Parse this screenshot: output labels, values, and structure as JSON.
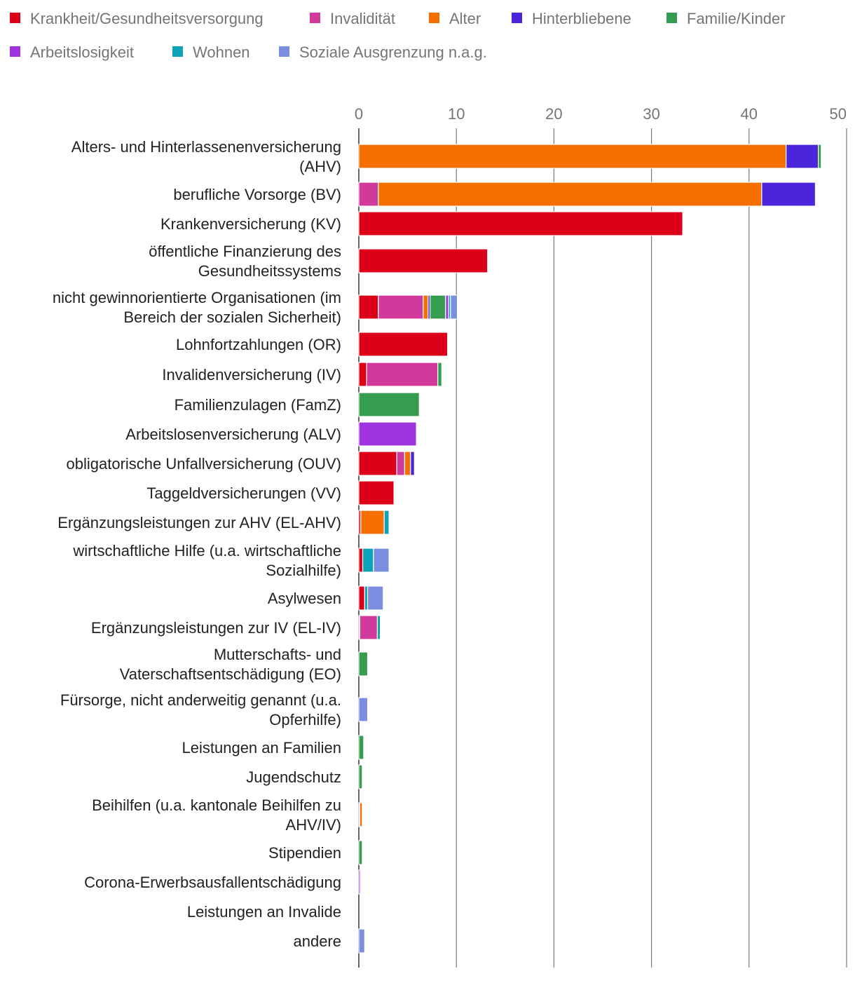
{
  "chart_data": {
    "type": "bar",
    "orientation": "horizontal",
    "stacked": true,
    "title": "",
    "xlabel": "",
    "ylabel": "",
    "xlim": [
      0,
      50
    ],
    "ticks": [
      0,
      10,
      20,
      30,
      40,
      50
    ],
    "grid": true,
    "legend_position": "top",
    "series": [
      {
        "name": "Krankheit/Gesundheitsversorgung",
        "color": "#dc0018"
      },
      {
        "name": "Invalidität",
        "color": "#d1399b"
      },
      {
        "name": "Alter",
        "color": "#f46e00"
      },
      {
        "name": "Hinterbliebene",
        "color": "#4a25d9"
      },
      {
        "name": "Familie/Kinder",
        "color": "#359c50"
      },
      {
        "name": "Arbeitslosigkeit",
        "color": "#a033e0"
      },
      {
        "name": "Wohnen",
        "color": "#0ca3b8"
      },
      {
        "name": "Soziale Ausgrenzung n.a.g.",
        "color": "#7b8ee0"
      }
    ],
    "categories": [
      {
        "label": [
          "Alters- und Hinterlassenenversicherung",
          "(AHV)"
        ],
        "values": [
          0,
          0,
          43.8,
          3.3,
          0.3,
          0,
          0,
          0
        ]
      },
      {
        "label": [
          "berufliche Vorsorge (BV)"
        ],
        "values": [
          0,
          2.0,
          39.3,
          5.5,
          0,
          0,
          0,
          0
        ]
      },
      {
        "label": [
          "Krankenversicherung (KV)"
        ],
        "values": [
          33.2,
          0,
          0,
          0,
          0,
          0,
          0,
          0
        ]
      },
      {
        "label": [
          "öffentliche Finanzierung des",
          "Gesundheitssystems"
        ],
        "values": [
          13.2,
          0,
          0,
          0,
          0,
          0,
          0,
          0
        ]
      },
      {
        "label": [
          "nicht gewinnorientierte Organisationen (im",
          "Bereich der sozialen Sicherheit)"
        ],
        "values": [
          2.0,
          4.6,
          0.5,
          0.2,
          1.6,
          0.3,
          0.2,
          0.7
        ]
      },
      {
        "label": [
          "Lohnfortzahlungen (OR)"
        ],
        "values": [
          9.1,
          0,
          0,
          0,
          0,
          0,
          0,
          0
        ]
      },
      {
        "label": [
          "Invalidenversicherung (IV)"
        ],
        "values": [
          0.8,
          7.3,
          0,
          0,
          0.4,
          0,
          0,
          0
        ]
      },
      {
        "label": [
          "Familienzulagen (FamZ)"
        ],
        "values": [
          0,
          0,
          0,
          0,
          6.2,
          0,
          0,
          0
        ]
      },
      {
        "label": [
          "Arbeitslosenversicherung (ALV)"
        ],
        "values": [
          0,
          0,
          0,
          0,
          0,
          5.9,
          0,
          0
        ]
      },
      {
        "label": [
          "obligatorische Unfallversicherung (OUV)"
        ],
        "values": [
          3.9,
          0.8,
          0.6,
          0.4,
          0,
          0,
          0,
          0
        ]
      },
      {
        "label": [
          "Taggeldversicherungen (VV)"
        ],
        "values": [
          3.6,
          0,
          0,
          0,
          0,
          0,
          0,
          0
        ]
      },
      {
        "label": [
          "Ergänzungsleistungen zur AHV (EL-AHV)"
        ],
        "values": [
          0.2,
          0,
          2.4,
          0,
          0,
          0,
          0.5,
          0
        ]
      },
      {
        "label": [
          "wirtschaftliche Hilfe (u.a. wirtschaftliche",
          "Sozialhilfe)"
        ],
        "values": [
          0.4,
          0,
          0,
          0,
          0,
          0,
          1.1,
          1.6
        ]
      },
      {
        "label": [
          "Asylwesen"
        ],
        "values": [
          0.6,
          0,
          0,
          0,
          0,
          0,
          0.3,
          1.6
        ]
      },
      {
        "label": [
          "Ergänzungsleistungen zur IV (EL-IV)"
        ],
        "values": [
          0.1,
          1.8,
          0,
          0,
          0,
          0,
          0.3,
          0
        ]
      },
      {
        "label": [
          "Mutterschafts- und",
          "Vaterschaftsentschädigung (EO)"
        ],
        "values": [
          0,
          0,
          0,
          0,
          0.9,
          0,
          0,
          0
        ]
      },
      {
        "label": [
          "Fürsorge, nicht anderweitig genannt (u.a.",
          "Opferhilfe)"
        ],
        "values": [
          0,
          0,
          0,
          0,
          0,
          0,
          0,
          0.9
        ]
      },
      {
        "label": [
          "Leistungen an Familien"
        ],
        "values": [
          0,
          0,
          0,
          0,
          0.5,
          0,
          0,
          0
        ]
      },
      {
        "label": [
          "Jugendschutz"
        ],
        "values": [
          0,
          0,
          0,
          0,
          0.35,
          0,
          0,
          0
        ]
      },
      {
        "label": [
          "Beihilfen (u.a. kantonale Beihilfen zu",
          "AHV/IV)"
        ],
        "values": [
          0,
          0.1,
          0.25,
          0,
          0,
          0,
          0,
          0
        ]
      },
      {
        "label": [
          "Stipendien"
        ],
        "values": [
          0,
          0,
          0,
          0,
          0.35,
          0,
          0,
          0
        ]
      },
      {
        "label": [
          "Corona-Erwerbsausfallentschädigung"
        ],
        "values": [
          0,
          0,
          0,
          0,
          0,
          0.15,
          0,
          0
        ]
      },
      {
        "label": [
          "Leistungen an Invalide"
        ],
        "values": [
          0,
          0,
          0,
          0,
          0,
          0,
          0,
          0
        ]
      },
      {
        "label": [
          "andere"
        ],
        "values": [
          0,
          0,
          0,
          0,
          0,
          0,
          0,
          0.6
        ]
      }
    ]
  }
}
